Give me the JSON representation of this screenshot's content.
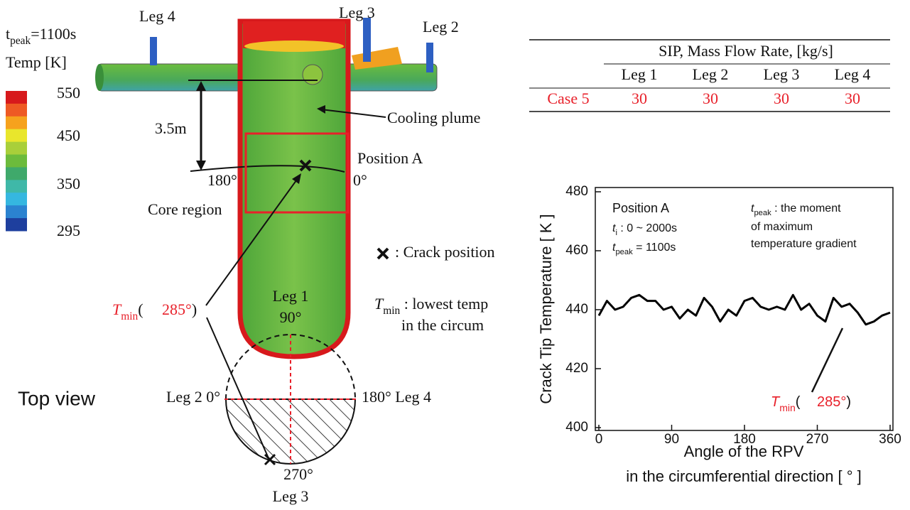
{
  "chart_data": {
    "type": "line",
    "x": [
      0,
      10,
      20,
      30,
      40,
      50,
      60,
      70,
      80,
      90,
      100,
      110,
      120,
      130,
      140,
      150,
      160,
      170,
      180,
      190,
      200,
      210,
      220,
      230,
      240,
      250,
      260,
      270,
      280,
      290,
      300,
      310,
      320,
      330,
      340,
      350,
      360
    ],
    "series": [
      {
        "color": "#000000",
        "values": [
          438,
          443,
          440,
          441,
          444,
          445,
          443,
          443,
          440,
          441,
          437,
          440,
          438,
          444,
          441,
          436,
          440,
          438,
          443,
          444,
          441,
          440,
          441,
          440,
          445,
          440,
          442,
          438,
          436,
          444,
          441,
          442,
          439,
          435,
          436,
          438,
          439
        ]
      }
    ],
    "xlim": [
      0,
      360
    ],
    "ylim": [
      400,
      480
    ],
    "xticks": [
      0,
      90,
      180,
      270,
      360
    ],
    "yticks": [
      400,
      420,
      440,
      460,
      480
    ],
    "y_label": "Crack Tip Temperature [ K ]",
    "x_label": [
      "Angle of the RPV",
      "in the circumferential direction [ ° ]"
    ],
    "position_label": "Position A",
    "time_range": {
      "symbol": "t",
      "subscript": "i",
      "text": " : 0 ~ 2000s"
    },
    "peak_time": {
      "symbol": "t",
      "subscript": "peak",
      "text": " = 1100s"
    },
    "peak_note": {
      "symbol": "t",
      "subscript": "peak",
      "lines": [
        " : the moment",
        "of maximum",
        "temperature gradient"
      ]
    },
    "tmin": {
      "symbol": "T",
      "subscript": "min",
      "open": "(",
      "value": "285°",
      "close": ")"
    }
  },
  "table": {
    "header": "SIP, Mass Flow Rate, [kg/s]",
    "columns": [
      "Leg 1",
      "Leg 2",
      "Leg 3",
      "Leg 4"
    ],
    "rows": [
      [
        "Case 5",
        30,
        30,
        30,
        30
      ]
    ]
  },
  "diagram": {
    "time": {
      "symbol": "t",
      "subscript": "peak",
      "text": "=1100s"
    },
    "colorbar": {
      "title": "Temp [K]",
      "labels": [
        550,
        450,
        350,
        295
      ],
      "colors": [
        "#d7191c",
        "#ee5a24",
        "#f6a21d",
        "#e9e62c",
        "#a9cf3a",
        "#6cbb3c",
        "#3fa96b",
        "#3fb8a8",
        "#35b7e0",
        "#2b83d0",
        "#1e3f9e"
      ]
    },
    "legs": [
      "Leg 4",
      "Leg 3",
      "Leg 2"
    ],
    "distance": "3.5m",
    "plume": "Cooling plume",
    "position": "Position A",
    "angle_left": "180°",
    "angle_right": "0°",
    "core": "Core region",
    "crack_legend": ": Crack position",
    "tmin_def": {
      "symbol": "T",
      "subscript": "min",
      "lines": [
        " : lowest temp",
        "in the circum"
      ]
    },
    "tmin": {
      "symbol": "T",
      "subscript": "min",
      "open": "(",
      "value": "285°",
      "close": ")"
    }
  },
  "top_view": {
    "title": "Top view",
    "leg1": "Leg 1",
    "deg90": "90°",
    "left": "Leg 2  0°",
    "right": "180°  Leg 4",
    "deg270": "270°",
    "leg3": "Leg 3"
  }
}
